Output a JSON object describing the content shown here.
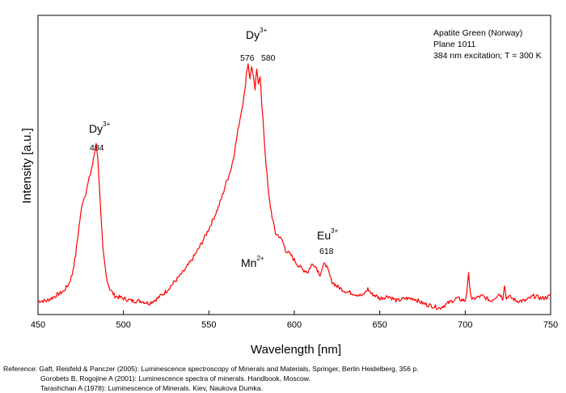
{
  "chart_data": {
    "type": "line",
    "xlabel": "Wavelength [nm]",
    "ylabel": "Intensity [a.u.]",
    "xlim": [
      450,
      750
    ],
    "ylim": [
      0,
      1
    ],
    "xticks": [
      450,
      500,
      550,
      600,
      650,
      700,
      750
    ],
    "grid": false,
    "line_color": "#ff0000",
    "legend_lines": [
      "Apatite Green (Norway)",
      "Plane 1011",
      "384 nm excitation; T = 300 K"
    ],
    "annotations": [
      {
        "label": "Dy",
        "sup": "3+",
        "peaks": [
          "576",
          "580"
        ]
      },
      {
        "label": "Dy",
        "sup": "3+",
        "peaks": [
          "484"
        ]
      },
      {
        "label": "Eu",
        "sup": "3+",
        "peaks": [
          "618"
        ]
      },
      {
        "label": "Mn",
        "sup": "2+",
        "peaks": []
      }
    ],
    "series": [
      {
        "x": [
          450,
          455,
          460,
          465,
          468,
          470,
          472,
          474,
          476,
          478,
          480,
          482,
          483,
          484,
          485,
          486,
          487,
          488,
          490,
          492,
          495,
          500,
          505,
          510,
          515,
          520,
          525,
          530,
          535,
          540,
          545,
          550,
          555,
          558,
          560,
          563,
          565,
          567,
          569,
          571,
          572,
          573,
          574,
          575,
          576,
          577,
          578,
          579,
          580,
          581,
          582,
          583,
          585,
          587,
          589,
          591,
          593,
          595,
          598,
          600,
          602,
          605,
          608,
          610,
          612,
          615,
          618,
          620,
          622,
          625,
          630,
          635,
          640,
          643,
          645,
          648,
          650,
          655,
          660,
          665,
          670,
          675,
          680,
          685,
          690,
          695,
          700,
          701,
          702,
          703,
          704,
          705,
          710,
          715,
          720,
          722,
          723,
          724,
          725,
          730,
          735,
          740,
          745,
          750
        ],
        "y": [
          0.01,
          0.01,
          0.03,
          0.05,
          0.08,
          0.12,
          0.2,
          0.32,
          0.42,
          0.46,
          0.52,
          0.58,
          0.62,
          0.67,
          0.6,
          0.48,
          0.34,
          0.22,
          0.11,
          0.06,
          0.03,
          0.02,
          0.01,
          0.01,
          0.0,
          0.02,
          0.05,
          0.09,
          0.13,
          0.18,
          0.24,
          0.31,
          0.39,
          0.45,
          0.5,
          0.56,
          0.63,
          0.72,
          0.8,
          0.88,
          0.96,
          1.0,
          0.93,
          0.99,
          0.94,
          0.89,
          0.97,
          0.92,
          0.95,
          0.82,
          0.73,
          0.62,
          0.45,
          0.36,
          0.29,
          0.28,
          0.26,
          0.22,
          0.2,
          0.18,
          0.16,
          0.14,
          0.13,
          0.16,
          0.16,
          0.12,
          0.17,
          0.13,
          0.09,
          0.07,
          0.05,
          0.04,
          0.03,
          0.06,
          0.04,
          0.03,
          0.02,
          0.03,
          0.01,
          0.02,
          0.02,
          0.0,
          -0.01,
          -0.02,
          0.0,
          0.02,
          0.01,
          0.05,
          0.12,
          0.05,
          0.01,
          0.02,
          0.03,
          0.01,
          0.04,
          0.02,
          0.08,
          0.02,
          0.03,
          0.01,
          0.01,
          0.03,
          0.02,
          0.03
        ]
      }
    ]
  },
  "references": {
    "lines": [
      "Reference: Gaft, Reisfeld & Panczer (2005): Luminescence spectroscopy of Minerals and Materials, Springer, Berlin Heidelberg, 356 p.",
      "Gorobets B, Rogojine A (2001): Luminescence spectra of minerals. Handbook, Moscow.",
      "Tarashchan A (1978): Luminescence of Minerals. Kiev, Naukova Dumka."
    ]
  }
}
